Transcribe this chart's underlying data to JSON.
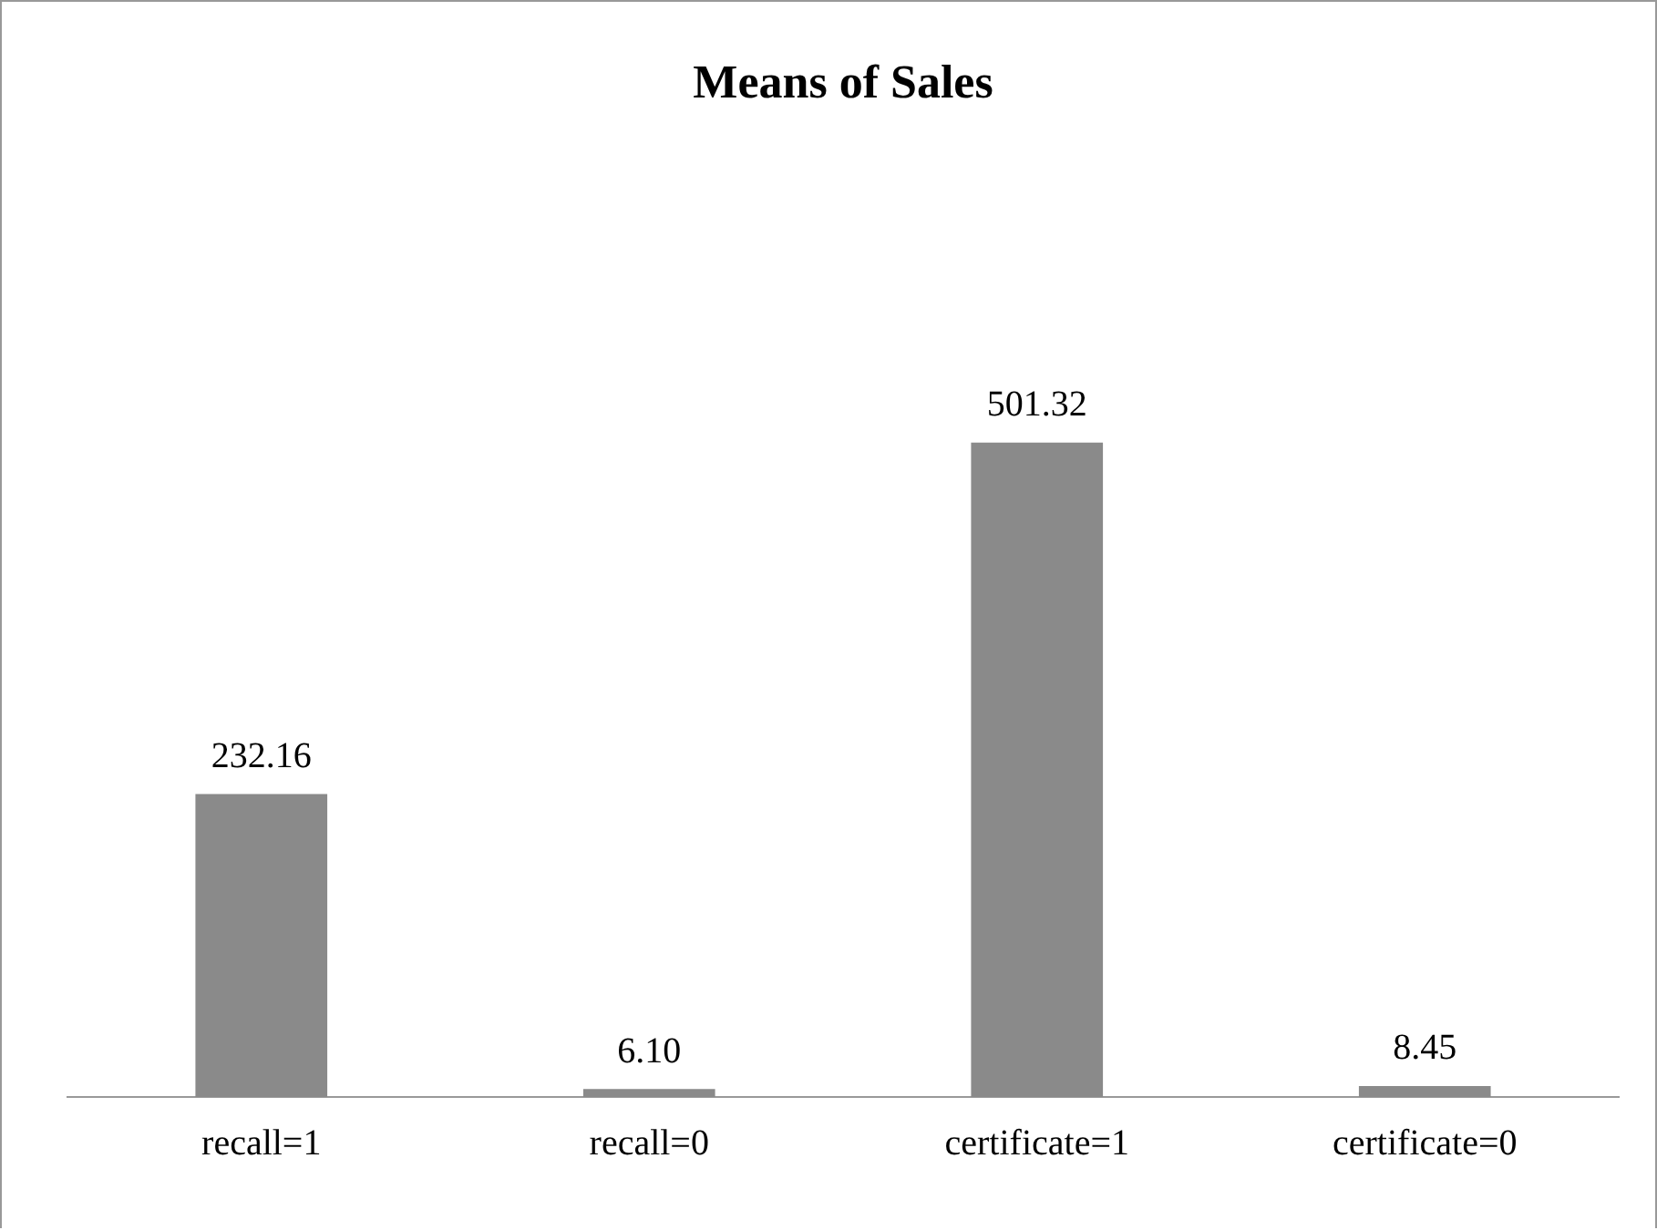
{
  "chart_data": {
    "type": "bar",
    "title": "Means of Sales",
    "categories": [
      "recall=1",
      "recall=0",
      "certificate=1",
      "certificate=0"
    ],
    "values": [
      232.16,
      6.1,
      501.32,
      8.45
    ],
    "value_labels": [
      "232.16",
      "6.10",
      "501.32",
      "8.45"
    ],
    "color": "#8a8a8a",
    "grid": false,
    "legend": false
  }
}
